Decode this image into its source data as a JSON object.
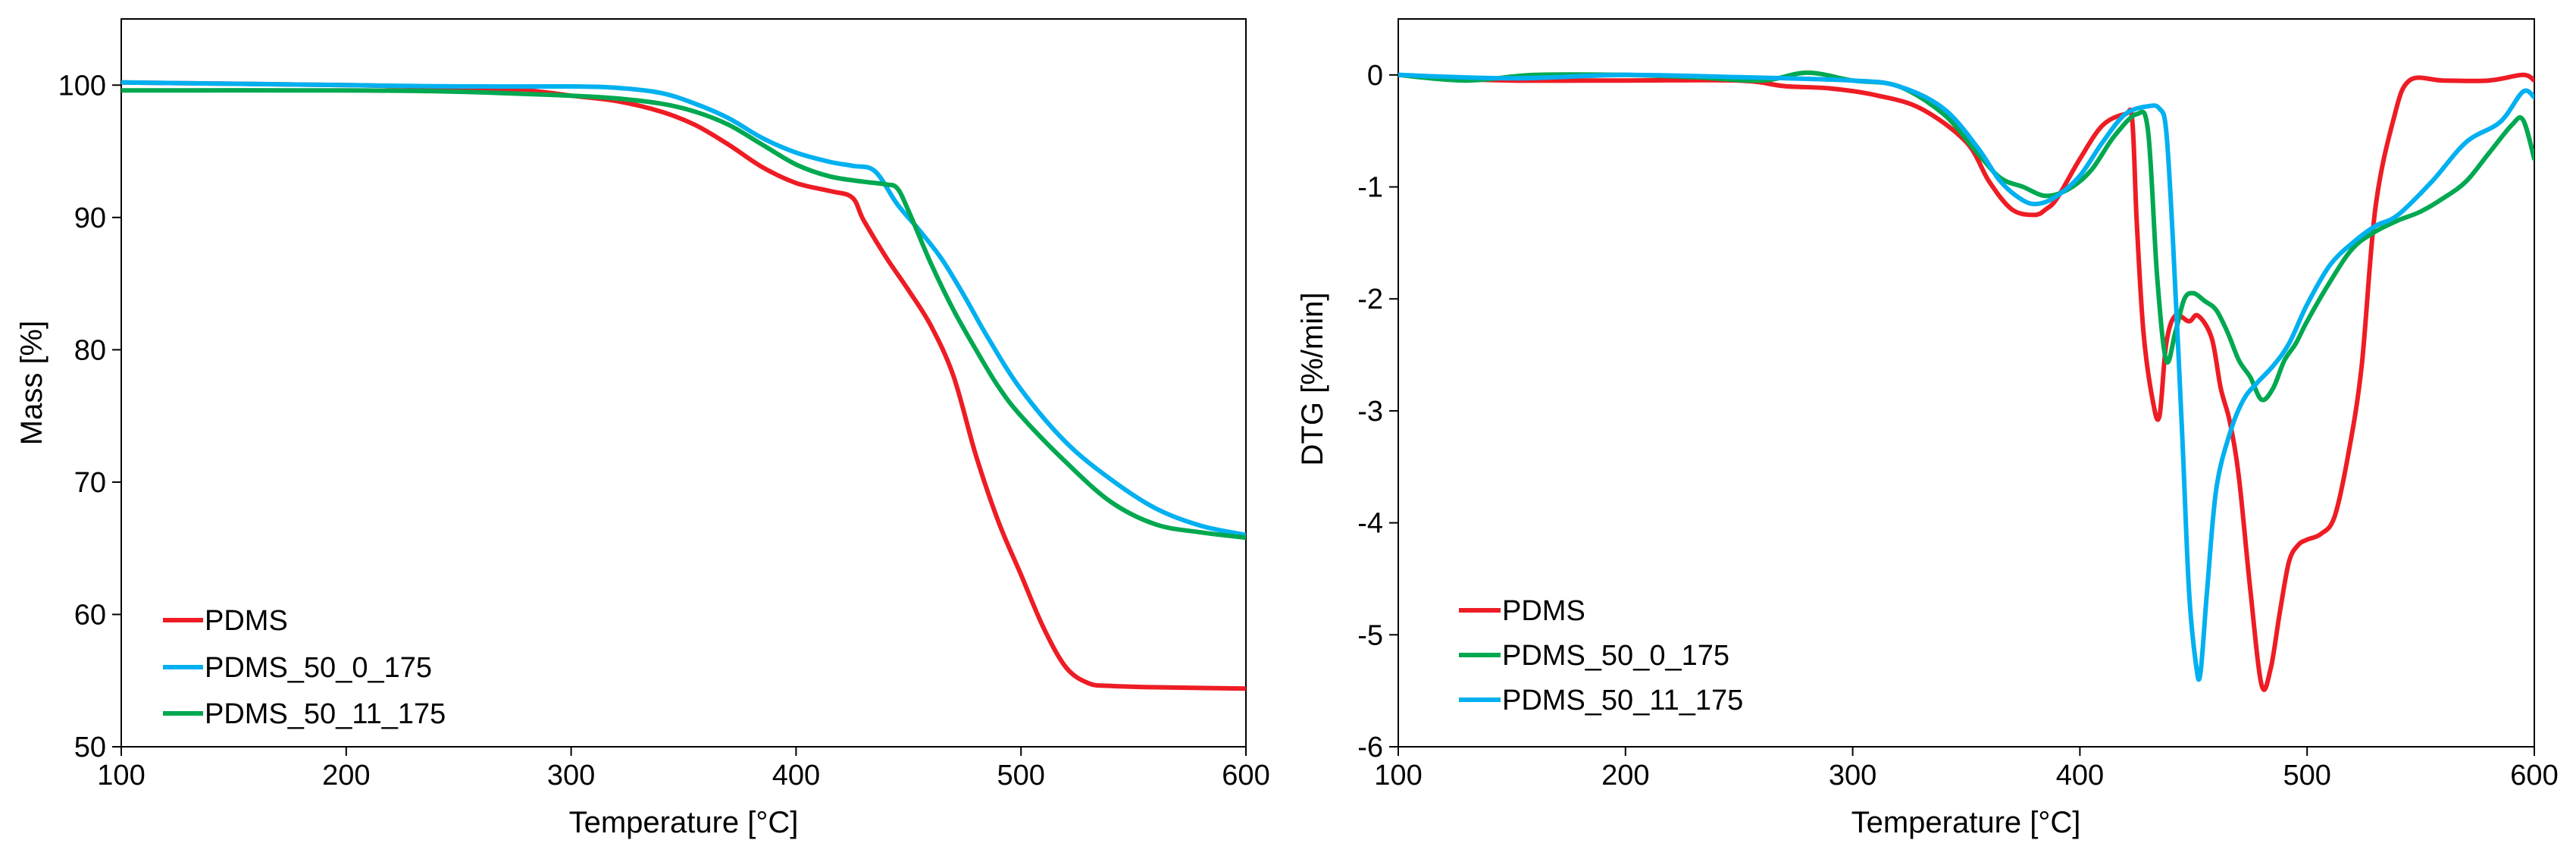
{
  "chart_data": [
    {
      "type": "line",
      "title": "",
      "xlabel": "Temperature [°C]",
      "ylabel": "Mass [%]",
      "xlim": [
        100,
        600
      ],
      "ylim": [
        50,
        105
      ],
      "xticks": [
        100,
        200,
        300,
        400,
        500,
        600
      ],
      "yticks": [
        50,
        60,
        70,
        80,
        90,
        100
      ],
      "xtick_labels": [
        "100",
        "200",
        "300",
        "400",
        "500",
        "600"
      ],
      "ytick_labels": [
        "50",
        "60",
        "70",
        "80",
        "90",
        "100"
      ],
      "grid": false,
      "legend_position": "bottom-left",
      "series": [
        {
          "name": "PDMS",
          "color": "#ee1c24",
          "x": [
            100,
            200,
            250,
            280,
            300,
            320,
            340,
            355,
            370,
            385,
            400,
            415,
            425,
            430,
            440,
            450,
            460,
            470,
            480,
            490,
            500,
            510,
            520,
            530,
            540,
            560,
            600
          ],
          "y": [
            100.2,
            100.0,
            99.8,
            99.6,
            99.2,
            98.8,
            98.0,
            97.0,
            95.5,
            93.8,
            92.6,
            92.0,
            91.5,
            89.8,
            87.0,
            84.5,
            81.8,
            78.0,
            72.0,
            67.0,
            63.0,
            59.0,
            56.0,
            54.8,
            54.6,
            54.5,
            54.4
          ]
        },
        {
          "name": "PDMS_50_0_175",
          "color": "#00b0f0",
          "x": [
            100,
            200,
            250,
            300,
            320,
            340,
            355,
            370,
            385,
            400,
            415,
            425,
            435,
            445,
            455,
            465,
            475,
            485,
            500,
            520,
            540,
            560,
            580,
            600
          ],
          "y": [
            100.2,
            100.0,
            99.9,
            99.9,
            99.8,
            99.4,
            98.6,
            97.5,
            96.0,
            94.9,
            94.2,
            93.9,
            93.5,
            91.0,
            89.0,
            86.8,
            84.0,
            81.0,
            77.0,
            73.0,
            70.2,
            68.0,
            66.7,
            66.0
          ]
        },
        {
          "name": "PDMS_50_11_175",
          "color": "#00a850",
          "x": [
            100,
            200,
            250,
            300,
            320,
            340,
            355,
            370,
            385,
            400,
            415,
            430,
            440,
            445,
            450,
            460,
            470,
            480,
            490,
            500,
            520,
            540,
            560,
            580,
            600
          ],
          "y": [
            99.6,
            99.6,
            99.5,
            99.2,
            99.0,
            98.6,
            98.0,
            97.0,
            95.5,
            94.0,
            93.1,
            92.7,
            92.5,
            92.2,
            90.5,
            86.5,
            83.0,
            80.0,
            77.2,
            75.0,
            71.5,
            68.5,
            66.8,
            66.2,
            65.8
          ]
        }
      ]
    },
    {
      "type": "line",
      "title": "",
      "xlabel": "Temperature [°C]",
      "ylabel": "DTG [%/min]",
      "xlim": [
        100,
        600
      ],
      "ylim": [
        -6,
        0.5
      ],
      "xticks": [
        100,
        200,
        300,
        400,
        500,
        600
      ],
      "yticks": [
        0,
        -1,
        -2,
        -3,
        -4,
        -5,
        -6
      ],
      "xtick_labels": [
        "100",
        "200",
        "300",
        "400",
        "500",
        "600"
      ],
      "ytick_labels": [
        "0",
        "-1",
        "-2",
        "-3",
        "-4",
        "-5",
        "-6"
      ],
      "grid": false,
      "legend_position": "bottom-left",
      "series": [
        {
          "name": "PDMS",
          "color": "#ee1c24",
          "x": [
            100,
            120,
            150,
            200,
            250,
            270,
            290,
            310,
            330,
            350,
            360,
            370,
            380,
            385,
            390,
            400,
            410,
            420,
            423,
            425,
            428,
            432,
            435,
            438,
            442,
            448,
            452,
            458,
            462,
            466,
            470,
            475,
            480,
            484,
            488,
            492,
            496,
            500,
            506,
            512,
            518,
            524,
            530,
            538,
            545,
            560,
            580,
            595,
            600
          ],
          "y": [
            0,
            -0.03,
            -0.05,
            -0.05,
            -0.05,
            -0.1,
            -0.12,
            -0.18,
            -0.3,
            -0.6,
            -0.95,
            -1.2,
            -1.25,
            -1.2,
            -1.1,
            -0.75,
            -0.45,
            -0.35,
            -0.4,
            -1.3,
            -2.3,
            -2.9,
            -3.05,
            -2.4,
            -2.15,
            -2.2,
            -2.15,
            -2.35,
            -2.8,
            -3.1,
            -3.6,
            -4.6,
            -5.45,
            -5.3,
            -4.8,
            -4.35,
            -4.2,
            -4.15,
            -4.1,
            -3.95,
            -3.4,
            -2.6,
            -1.2,
            -0.4,
            -0.05,
            -0.05,
            -0.05,
            0,
            -0.05
          ]
        },
        {
          "name": "PDMS_50_0_175",
          "color": "#00a850",
          "x": [
            100,
            130,
            160,
            200,
            230,
            260,
            280,
            300,
            320,
            340,
            355,
            365,
            375,
            385,
            395,
            405,
            415,
            425,
            430,
            434,
            438,
            442,
            446,
            450,
            455,
            460,
            465,
            470,
            475,
            480,
            485,
            490,
            495,
            500,
            510,
            520,
            530,
            540,
            550,
            560,
            570,
            580,
            590,
            595,
            600
          ],
          "y": [
            0,
            -0.05,
            0,
            0,
            -0.02,
            -0.05,
            0.02,
            -0.05,
            -0.1,
            -0.35,
            -0.7,
            -0.92,
            -1.0,
            -1.08,
            -1.02,
            -0.85,
            -0.55,
            -0.35,
            -0.5,
            -1.8,
            -2.55,
            -2.3,
            -2.0,
            -1.95,
            -2.02,
            -2.1,
            -2.3,
            -2.55,
            -2.7,
            -2.9,
            -2.8,
            -2.55,
            -2.4,
            -2.2,
            -1.85,
            -1.55,
            -1.4,
            -1.3,
            -1.22,
            -1.1,
            -0.95,
            -0.7,
            -0.45,
            -0.4,
            -0.75
          ]
        },
        {
          "name": "PDMS_50_11_175",
          "color": "#00b0f0",
          "x": [
            100,
            150,
            200,
            250,
            300,
            320,
            340,
            355,
            365,
            375,
            382,
            390,
            400,
            410,
            420,
            430,
            435,
            438,
            441,
            445,
            448,
            451,
            453,
            456,
            460,
            466,
            472,
            478,
            485,
            492,
            500,
            510,
            520,
            530,
            540,
            555,
            570,
            585,
            595,
            600
          ],
          "y": [
            0,
            -0.03,
            0,
            -0.02,
            -0.05,
            -0.1,
            -0.3,
            -0.65,
            -0.95,
            -1.12,
            -1.15,
            -1.08,
            -0.9,
            -0.6,
            -0.35,
            -0.28,
            -0.3,
            -0.5,
            -1.5,
            -3.2,
            -4.6,
            -5.25,
            -5.35,
            -4.6,
            -3.7,
            -3.2,
            -2.9,
            -2.75,
            -2.6,
            -2.4,
            -2.05,
            -1.7,
            -1.5,
            -1.35,
            -1.25,
            -0.95,
            -0.6,
            -0.42,
            -0.15,
            -0.2
          ]
        }
      ]
    }
  ]
}
